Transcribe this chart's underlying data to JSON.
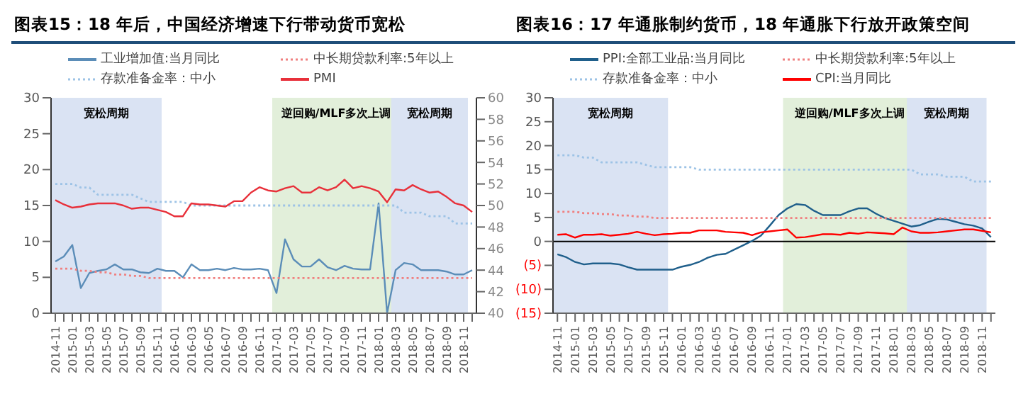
{
  "chart_data": [
    {
      "type": "line",
      "title": "图表15：18 年后，中国经济增速下行带动货币宽松",
      "categories": [
        "2014-11",
        null,
        "2015-01",
        null,
        "2015-03",
        null,
        "2015-05",
        null,
        "2015-07",
        null,
        "2015-09",
        null,
        "2015-11",
        null,
        "2016-01",
        null,
        "2016-03",
        null,
        "2016-05",
        null,
        "2016-07",
        null,
        "2016-09",
        null,
        "2016-11",
        null,
        "2017-01",
        null,
        "2017-03",
        null,
        "2017-05",
        null,
        "2017-07",
        null,
        "2017-09",
        null,
        "2017-11",
        null,
        "2018-01",
        null,
        "2018-03",
        null,
        "2018-05",
        null,
        "2018-07",
        null,
        "2018-09",
        null,
        "2018-11",
        null
      ],
      "series": [
        {
          "name": "工业增加值:当月同比",
          "color": "#5b8db8",
          "line_style": "solid",
          "values": [
            7.2,
            7.9,
            9.5,
            3.5,
            5.6,
            5.9,
            6.1,
            6.8,
            6.1,
            6.1,
            5.7,
            5.6,
            6.2,
            5.9,
            5.9,
            5.0,
            6.8,
            6.0,
            6.0,
            6.2,
            6.0,
            6.3,
            6.1,
            6.1,
            6.2,
            6.0,
            2.8,
            10.3,
            7.5,
            6.5,
            6.5,
            7.5,
            6.4,
            6.0,
            6.6,
            6.2,
            6.1,
            6.1,
            15.3,
            0,
            6.0,
            7.0,
            6.8,
            6.0,
            6.0,
            6.0,
            5.8,
            5.4,
            5.4,
            6.0
          ]
        },
        {
          "name": "中长期贷款利率:5年以上",
          "color": "#f08080",
          "line_style": "dotted",
          "values": [
            6.2,
            6.2,
            6.2,
            5.9,
            5.9,
            5.7,
            5.7,
            5.4,
            5.4,
            5.2,
            5.2,
            4.9,
            4.9,
            4.9,
            4.9,
            4.9,
            4.9,
            4.9,
            4.9,
            4.9,
            4.9,
            4.9,
            4.9,
            4.9,
            4.9,
            4.9,
            4.9,
            4.9,
            4.9,
            4.9,
            4.9,
            4.9,
            4.9,
            4.9,
            4.9,
            4.9,
            4.9,
            4.9,
            4.9,
            4.9,
            4.9,
            4.9,
            4.9,
            4.9,
            4.9,
            4.9,
            4.9,
            4.9,
            4.9,
            4.9
          ]
        },
        {
          "name": "存款准备金率：中小",
          "color": "#9dc3e6",
          "line_style": "dotted",
          "values": [
            18,
            18,
            18,
            17.5,
            17.5,
            16.5,
            16.5,
            16.5,
            16.5,
            16.5,
            16,
            15.5,
            15.5,
            15.5,
            15.5,
            15.5,
            15,
            15,
            15,
            15,
            15,
            15,
            15,
            15,
            15,
            15,
            15,
            15,
            15,
            15,
            15,
            15,
            15,
            15,
            15,
            15,
            15,
            15,
            15,
            15,
            15,
            14,
            14,
            14,
            13.5,
            13.5,
            13.5,
            12.5,
            12.5,
            12.5
          ]
        },
        {
          "name": "PMI",
          "color": "#e8303a",
          "line_style": "solid",
          "axis": "y2",
          "values": [
            50.5,
            50.1,
            49.8,
            49.9,
            50.1,
            50.2,
            50.2,
            50.2,
            50.0,
            49.7,
            49.8,
            49.8,
            49.6,
            49.4,
            49.0,
            49.0,
            50.2,
            50.1,
            50.1,
            50.0,
            49.9,
            50.4,
            50.4,
            51.2,
            51.7,
            51.4,
            51.3,
            51.6,
            51.8,
            51.2,
            51.2,
            51.7,
            51.4,
            51.7,
            52.4,
            51.6,
            51.8,
            51.6,
            51.3,
            50.3,
            51.5,
            51.4,
            51.9,
            51.5,
            51.2,
            51.3,
            50.8,
            50.2,
            50.0,
            49.4
          ]
        }
      ],
      "ylim": [
        0,
        30
      ],
      "yticks": [
        0,
        5,
        10,
        15,
        20,
        25,
        30
      ],
      "y2lim": [
        40,
        60
      ],
      "y2ticks": [
        40,
        42,
        44,
        46,
        48,
        50,
        52,
        54,
        56,
        58,
        60
      ],
      "bands": [
        {
          "axis": "x",
          "from": "2014-11",
          "to": "2015-11",
          "label": "宽松周期",
          "color": "#dae3f3"
        },
        {
          "axis": "x",
          "from": "2017-01",
          "to": "2018-03",
          "label": "逆回购/MLF多次上调",
          "color": "#e2efda"
        },
        {
          "axis": "x",
          "from": "2018-03",
          "to": "2018-11",
          "label": "宽松周期",
          "color": "#dae3f3"
        }
      ],
      "grid": false,
      "legend": "top",
      "marker": "none"
    },
    {
      "type": "line",
      "title": "图表16：17 年通胀制约货币，18 年通胀下行放开政策空间",
      "categories": [
        "2014-11",
        null,
        "2015-01",
        null,
        "2015-03",
        null,
        "2015-05",
        null,
        "2015-07",
        null,
        "2015-09",
        null,
        "2015-11",
        null,
        "2016-01",
        null,
        "2016-03",
        null,
        "2016-05",
        null,
        "2016-07",
        null,
        "2016-09",
        null,
        "2016-11",
        null,
        "2017-01",
        null,
        "2017-03",
        null,
        "2017-05",
        null,
        "2017-07",
        null,
        "2017-09",
        null,
        "2017-11",
        null,
        "2018-01",
        null,
        "2018-03",
        null,
        "2018-05",
        null,
        "2018-07",
        null,
        "2018-09",
        null,
        "2018-11",
        null
      ],
      "series": [
        {
          "name": "PPI:全部工业品:当月同比",
          "color": "#1f5f8b",
          "line_style": "solid",
          "values": [
            -2.7,
            -3.3,
            -4.3,
            -4.8,
            -4.6,
            -4.6,
            -4.6,
            -4.8,
            -5.4,
            -5.9,
            -5.9,
            -5.9,
            -5.9,
            -5.9,
            -5.3,
            -4.9,
            -4.3,
            -3.4,
            -2.8,
            -2.6,
            -1.7,
            -0.8,
            0.1,
            1.2,
            3.3,
            5.5,
            6.9,
            7.8,
            7.6,
            6.4,
            5.5,
            5.5,
            5.5,
            6.3,
            6.9,
            6.9,
            5.8,
            4.9,
            4.3,
            3.7,
            3.1,
            3.4,
            4.1,
            4.7,
            4.6,
            4.1,
            3.6,
            3.3,
            2.7,
            0.9
          ]
        },
        {
          "name": "中长期贷款利率:5年以上",
          "color": "#f08080",
          "line_style": "dotted",
          "values": [
            6.2,
            6.2,
            6.2,
            5.9,
            5.9,
            5.7,
            5.7,
            5.4,
            5.4,
            5.2,
            5.2,
            4.9,
            4.9,
            4.9,
            4.9,
            4.9,
            4.9,
            4.9,
            4.9,
            4.9,
            4.9,
            4.9,
            4.9,
            4.9,
            4.9,
            4.9,
            4.9,
            4.9,
            4.9,
            4.9,
            4.9,
            4.9,
            4.9,
            4.9,
            4.9,
            4.9,
            4.9,
            4.9,
            4.9,
            4.9,
            4.9,
            4.9,
            4.9,
            4.9,
            4.9,
            4.9,
            4.9,
            4.9,
            4.9,
            4.9
          ]
        },
        {
          "name": "存款准备金率：中小",
          "color": "#9dc3e6",
          "line_style": "dotted",
          "values": [
            18,
            18,
            18,
            17.5,
            17.5,
            16.5,
            16.5,
            16.5,
            16.5,
            16.5,
            16,
            15.5,
            15.5,
            15.5,
            15.5,
            15.5,
            15,
            15,
            15,
            15,
            15,
            15,
            15,
            15,
            15,
            15,
            15,
            15,
            15,
            15,
            15,
            15,
            15,
            15,
            15,
            15,
            15,
            15,
            15,
            15,
            15,
            14,
            14,
            14,
            13.5,
            13.5,
            13.5,
            12.5,
            12.5,
            12.5
          ]
        },
        {
          "name": "CPI:当月同比",
          "color": "#ff0000",
          "line_style": "solid",
          "values": [
            1.4,
            1.5,
            0.8,
            1.4,
            1.4,
            1.5,
            1.2,
            1.4,
            1.6,
            2.0,
            1.6,
            1.3,
            1.5,
            1.6,
            1.8,
            1.8,
            2.3,
            2.3,
            2.3,
            2.0,
            1.9,
            1.8,
            1.3,
            1.9,
            2.1,
            2.3,
            2.5,
            0.8,
            0.9,
            1.2,
            1.5,
            1.5,
            1.4,
            1.8,
            1.6,
            1.9,
            1.8,
            1.7,
            1.5,
            2.9,
            2.1,
            1.8,
            1.8,
            1.9,
            2.1,
            2.3,
            2.5,
            2.5,
            2.2,
            1.9
          ]
        }
      ],
      "ylim": [
        -15,
        30
      ],
      "yticks": [
        {
          "value": -15,
          "label": "(15)"
        },
        {
          "value": -10,
          "label": "(10)"
        },
        {
          "value": -5,
          "label": "(5)"
        },
        0,
        5,
        10,
        15,
        20,
        25,
        30
      ],
      "ref_lines": [
        {
          "axis": "y",
          "value": 0,
          "color": "#000000"
        }
      ],
      "bands": [
        {
          "axis": "x",
          "from": "2014-11",
          "to": "2015-11",
          "label": "宽松周期",
          "color": "#dae3f3"
        },
        {
          "axis": "x",
          "from": "2017-01",
          "to": "2018-03",
          "label": "逆回购/MLF多次上调",
          "color": "#e2efda"
        },
        {
          "axis": "x",
          "from": "2018-03",
          "to": "2018-11",
          "label": "宽松周期",
          "color": "#dae3f3"
        }
      ],
      "grid": false,
      "legend": "top",
      "marker": "none"
    }
  ]
}
